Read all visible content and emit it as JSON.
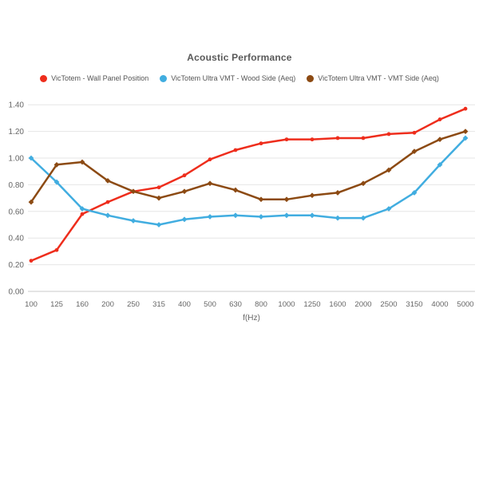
{
  "title": "Acoustic Performance",
  "chart_data": {
    "type": "line",
    "title": "Acoustic Performance",
    "xlabel": "f(Hz)",
    "ylabel": "",
    "ylim": [
      0,
      1.4
    ],
    "ytick_step": 0.2,
    "ytick_labels": [
      "0.00",
      "0.20",
      "0.40",
      "0.60",
      "0.80",
      "1.00",
      "1.20",
      "1.40"
    ],
    "grid": "horizontal",
    "legend_position": "top",
    "categories": [
      "100",
      "125",
      "160",
      "200",
      "250",
      "315",
      "400",
      "500",
      "630",
      "800",
      "1000",
      "1250",
      "1600",
      "2000",
      "2500",
      "3150",
      "4000",
      "5000"
    ],
    "series": [
      {
        "name": "VicTotem - Wall Panel Position",
        "color": "#ee2d1c",
        "marker": "circle",
        "values": [
          0.23,
          0.31,
          0.58,
          0.67,
          0.75,
          0.78,
          0.87,
          0.99,
          1.06,
          1.11,
          1.14,
          1.14,
          1.15,
          1.15,
          1.18,
          1.19,
          1.29,
          1.37
        ]
      },
      {
        "name": "VicTotem Ultra VMT - Wood Side (Aeq)",
        "color": "#41ade0",
        "marker": "diamond",
        "values": [
          1.0,
          0.82,
          0.62,
          0.57,
          0.53,
          0.5,
          0.54,
          0.56,
          0.57,
          0.56,
          0.57,
          0.57,
          0.55,
          0.55,
          0.62,
          0.74,
          0.95,
          1.15
        ]
      },
      {
        "name": "VicTotem Ultra VMT - VMT Side (Aeq)",
        "color": "#8c4a13",
        "marker": "diamond",
        "values": [
          0.67,
          0.95,
          0.97,
          0.83,
          0.75,
          0.7,
          0.75,
          0.81,
          0.76,
          0.69,
          0.69,
          0.72,
          0.74,
          0.81,
          0.91,
          1.05,
          1.14,
          1.2
        ]
      }
    ]
  },
  "styles": {
    "grid_color": "#e6e6e6",
    "baseline_color": "#c9c9c9",
    "tick_text_color": "#666666",
    "title_color": "#595959"
  }
}
